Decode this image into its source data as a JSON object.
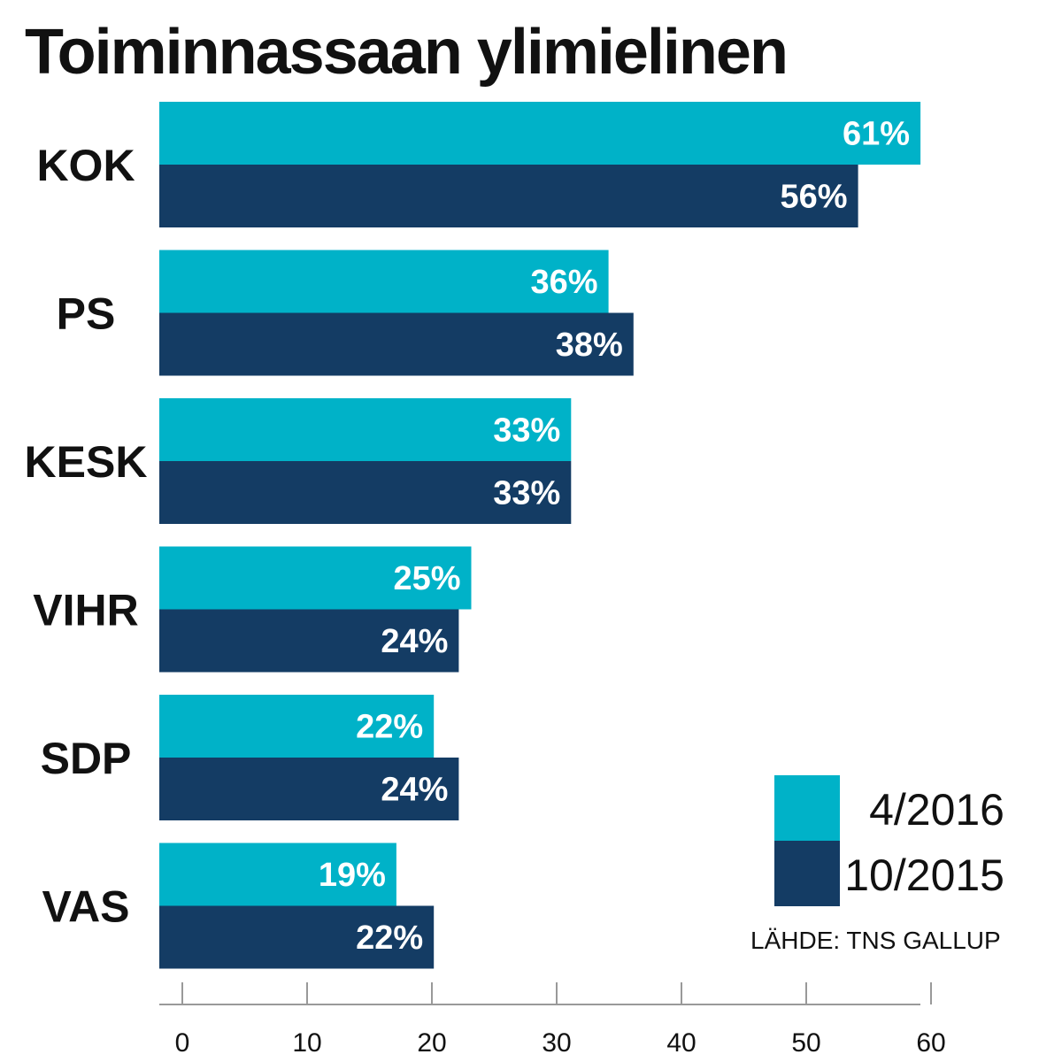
{
  "chart_data": {
    "type": "bar",
    "orientation": "horizontal",
    "title": "Toiminnassaan ylimielinen",
    "categories": [
      "KOK",
      "PS",
      "KESK",
      "VIHR",
      "SDP",
      "VAS"
    ],
    "series": [
      {
        "name": "4/2016",
        "color": "#00b2c8",
        "values": [
          61,
          36,
          33,
          25,
          22,
          19
        ],
        "labels": [
          "61%",
          "36%",
          "33%",
          "25%",
          "22%",
          "19%"
        ]
      },
      {
        "name": "10/2015",
        "color": "#143c64",
        "values": [
          56,
          38,
          33,
          24,
          24,
          22
        ],
        "labels": [
          "56%",
          "38%",
          "33%",
          "24%",
          "24%",
          "22%"
        ]
      }
    ],
    "xlim": [
      0,
      60
    ],
    "xticks": [
      0,
      10,
      20,
      30,
      40,
      50,
      60
    ],
    "tick_labels": [
      "0",
      "10",
      "20",
      "30",
      "40",
      "50",
      "60"
    ],
    "legend_position": "bottom-right",
    "grid": false,
    "source": "LÄHDE: TNS GALLUP"
  }
}
